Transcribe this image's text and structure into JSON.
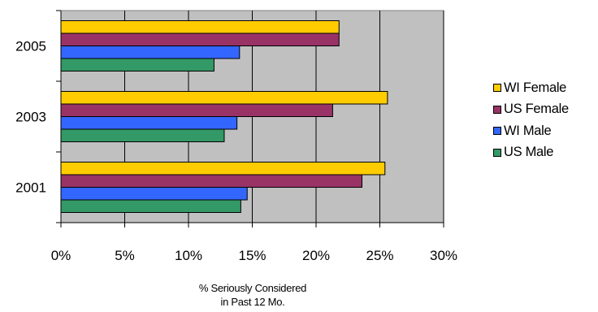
{
  "chart_data": {
    "type": "bar",
    "orientation": "horizontal",
    "categories": [
      "2005",
      "2003",
      "2001"
    ],
    "series": [
      {
        "name": "WI Female",
        "color": "#FFCC00",
        "values": [
          21.8,
          25.6,
          25.4
        ]
      },
      {
        "name": "US Female",
        "color": "#993366",
        "values": [
          21.8,
          21.3,
          23.6
        ]
      },
      {
        "name": "WI Male",
        "color": "#3366FF",
        "values": [
          14.0,
          13.8,
          14.6
        ]
      },
      {
        "name": "US Male",
        "color": "#339966",
        "values": [
          12.0,
          12.8,
          14.1
        ]
      }
    ],
    "xlim": [
      0,
      30
    ],
    "xticks": [
      "0%",
      "5%",
      "10%",
      "15%",
      "20%",
      "25%",
      "30%"
    ],
    "xlabel_line1": "% Seriously Considered",
    "xlabel_line2": "in Past 12 Mo.",
    "plot_background": "#C0C0C0",
    "legend_position": "right",
    "grid": true
  }
}
